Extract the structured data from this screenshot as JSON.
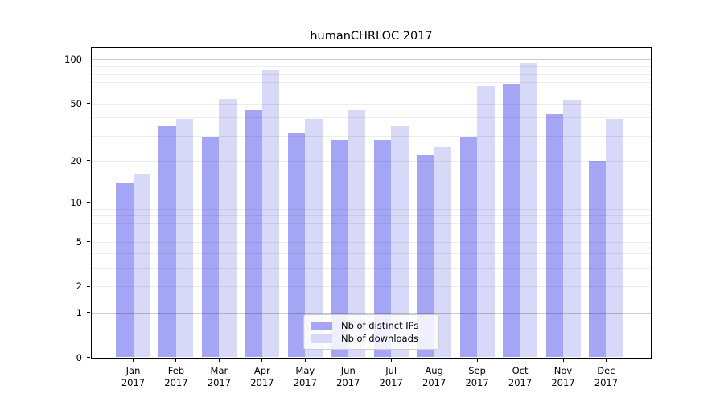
{
  "title": "humanCHRLOC 2017",
  "chart_data": {
    "type": "bar",
    "title": "humanCHRLOC 2017",
    "categories": [
      "Jan",
      "Feb",
      "Mar",
      "Apr",
      "May",
      "Jun",
      "Jul",
      "Aug",
      "Sep",
      "Oct",
      "Nov",
      "Dec"
    ],
    "category_year": "2017",
    "series": [
      {
        "name": "Nb of distinct IPs",
        "color": "#a5a5f6",
        "values": [
          14,
          35,
          29,
          45,
          31,
          28,
          28,
          22,
          29,
          68,
          42,
          20
        ]
      },
      {
        "name": "Nb of downloads",
        "color": "#d8d8f9",
        "values": [
          16,
          39,
          54,
          85,
          39,
          45,
          35,
          25,
          66,
          95,
          53,
          39
        ]
      }
    ],
    "xlabel": "",
    "ylabel": "",
    "yscale": "log10(value+1)",
    "yticks": [
      0,
      1,
      2,
      5,
      10,
      20,
      50,
      100
    ],
    "major_gridlines": [
      1,
      10,
      100
    ],
    "minor_gridlines": [
      2,
      3,
      4,
      5,
      6,
      7,
      8,
      9,
      20,
      30,
      40,
      50,
      60,
      70,
      80,
      90
    ],
    "ylim": [
      0,
      119
    ],
    "grid": true,
    "legend_position": "lower center",
    "colors": {
      "major_grid": "rgba(0,0,0,0.20)",
      "minor_grid": "rgba(0,0,0,0.07)",
      "axis": "#000000",
      "background": "#ffffff"
    }
  }
}
